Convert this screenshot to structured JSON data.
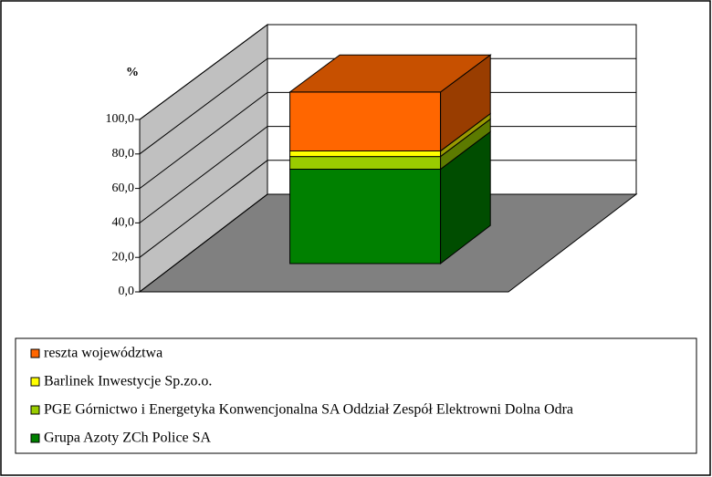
{
  "chart_data": {
    "type": "bar3d_stacked",
    "y_label": "%",
    "categories": [
      null
    ],
    "series": [
      {
        "name": "Grupa Azoty ZCh Police SA",
        "color": "#008000",
        "values": [
          55.0
        ]
      },
      {
        "name": "PGE Górnictwo i Energetyka Konwencjonalna SA Oddział Zespół Elektrowni Dolna Odra",
        "color": "#99cc00",
        "values": [
          7.4
        ]
      },
      {
        "name": "Barlinek Inwestycje Sp.zo.o.",
        "color": "#ffff00",
        "values": [
          3.2
        ]
      },
      {
        "name": "reszta województwa",
        "color": "#ff6600",
        "values": [
          34.4
        ]
      }
    ],
    "ylim": [
      0,
      100
    ],
    "yticks": [
      {
        "value": 0,
        "label": "0,0"
      },
      {
        "value": 20,
        "label": "20,0"
      },
      {
        "value": 40,
        "label": "40,0"
      },
      {
        "value": 60,
        "label": "60,0"
      },
      {
        "value": 80,
        "label": "80,0"
      },
      {
        "value": 100,
        "label": "100,0"
      }
    ],
    "grid": true,
    "legend": "bottom"
  }
}
